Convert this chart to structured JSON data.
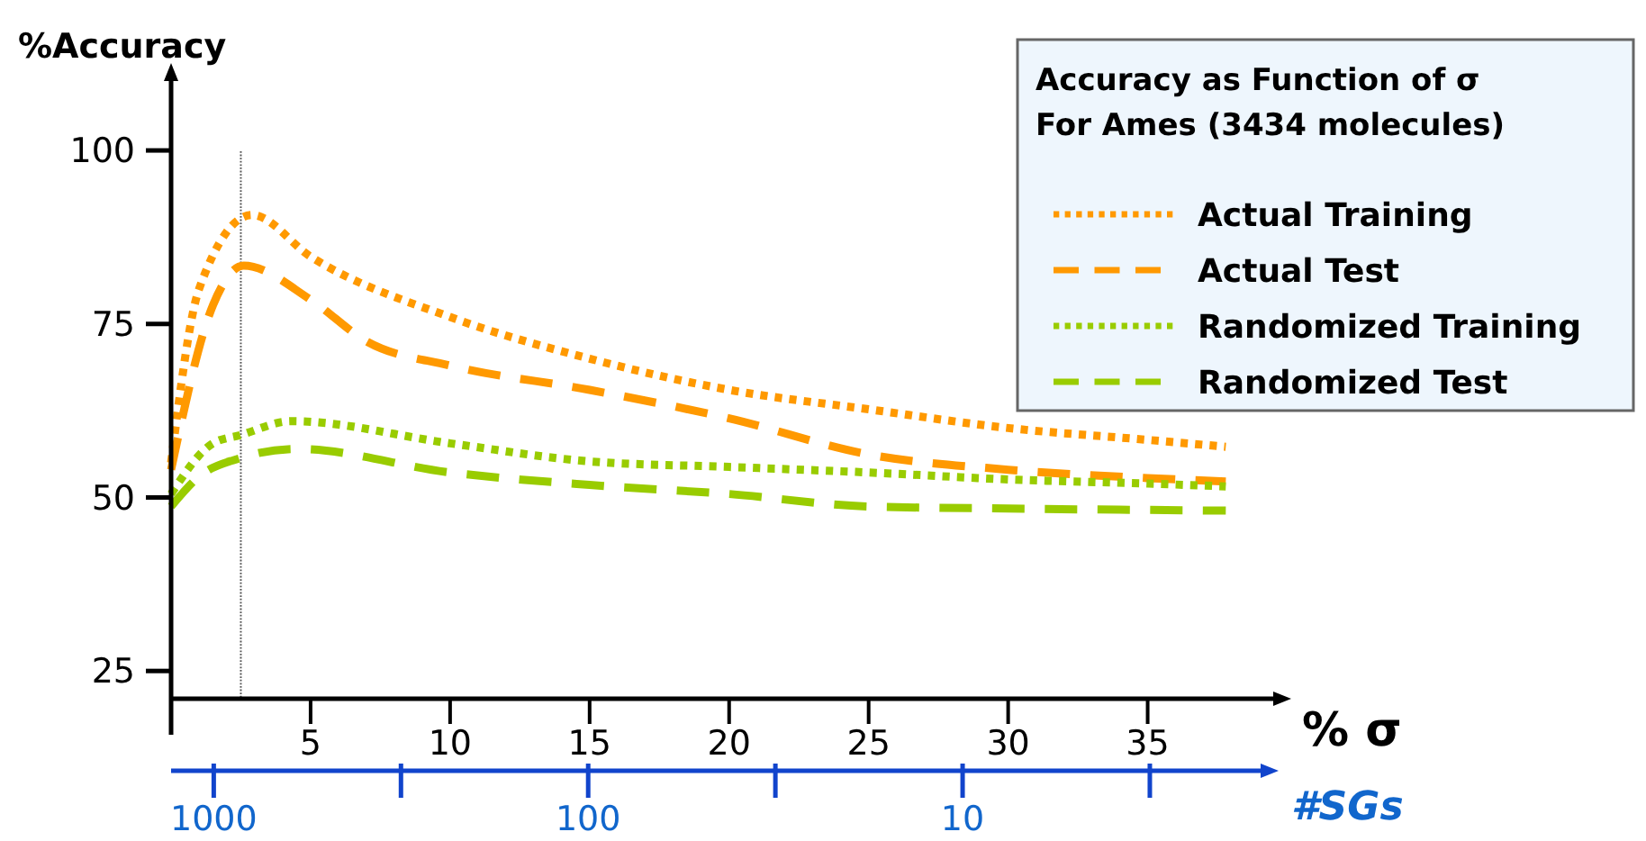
{
  "chart_data": {
    "type": "line",
    "legend_title": "Accuracy as Function of σ\nFor Ames (3434 molecules)",
    "ylabel": "%Accuracy",
    "xlabel": "% σ",
    "x2label": "#SGs",
    "xlim": [
      0,
      39.5
    ],
    "xticks": [
      5,
      10,
      15,
      20,
      25,
      30,
      35
    ],
    "ylim": [
      21,
      110
    ],
    "yticks": [
      25,
      50,
      75,
      100
    ],
    "x2lim": [
      1300,
      1.6
    ],
    "log": "x2",
    "x2ticks": [
      1000,
      100,
      10
    ],
    "legend": "top right",
    "grid": false,
    "ref_lines": [
      {
        "axis": "x",
        "value": 2.5,
        "color": "#555555",
        "line_style": "dotted"
      }
    ],
    "series": [
      {
        "name": "Actual Training",
        "color": "#ff9900",
        "line_style": "dotted",
        "x": [
          0,
          1,
          2.9,
          5,
          10,
          15,
          20,
          25,
          30,
          35,
          37.8
        ],
        "values": [
          55,
          80,
          90.7,
          84.7,
          76,
          70,
          65.5,
          62.7,
          60,
          58.3,
          57.3
        ]
      },
      {
        "name": "Actual Test",
        "color": "#ff9900",
        "line_style": "dashed",
        "x": [
          0,
          1.5,
          2.6,
          5,
          7,
          10,
          15,
          20,
          25,
          30,
          35,
          37.8
        ],
        "values": [
          54,
          77.7,
          83.4,
          78.5,
          72.5,
          69,
          65.5,
          61.4,
          56.2,
          54,
          52.8,
          52.3
        ]
      },
      {
        "name": "Randomized Training",
        "color": "#99cc00",
        "line_style": "dotted",
        "x": [
          0,
          1.5,
          2.5,
          4.3,
          10,
          15,
          20,
          25,
          30,
          35,
          37.8
        ],
        "values": [
          50.5,
          57.8,
          59,
          61,
          57.8,
          55.2,
          54.4,
          53.6,
          52.6,
          52,
          51.6
        ]
      },
      {
        "name": "Randomized Test",
        "color": "#99cc00",
        "line_style": "dashed",
        "x": [
          0,
          1,
          2.5,
          4.5,
          10,
          15,
          20,
          25,
          30,
          35,
          37.8
        ],
        "values": [
          48.7,
          53,
          55.7,
          57,
          53.6,
          51.8,
          50.5,
          48.7,
          48.4,
          48.2,
          48.1
        ]
      }
    ]
  }
}
